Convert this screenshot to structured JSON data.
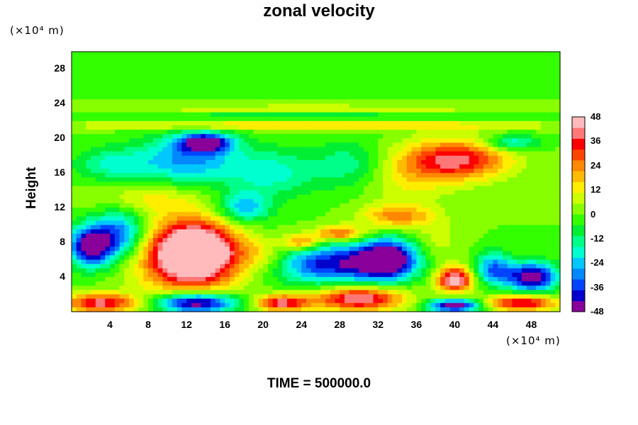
{
  "chart_data": {
    "type": "heatmap",
    "title": "zonal velocity",
    "ylabel": "Height",
    "y_unit": "(×10⁴ m)",
    "x_unit": "(×10⁴ m)",
    "footer": "TIME = 500000.0",
    "xlim": [
      0,
      51
    ],
    "ylim": [
      0,
      30
    ],
    "x_ticks": [
      4,
      8,
      12,
      16,
      20,
      24,
      28,
      32,
      36,
      40,
      44,
      48
    ],
    "y_ticks": [
      4,
      8,
      12,
      16,
      20,
      24,
      28
    ],
    "colorbar": {
      "min": -48,
      "max": 48,
      "step": 6,
      "ticks": [
        48,
        36,
        24,
        12,
        0,
        -12,
        -24,
        -36,
        -48
      ],
      "colors": [
        "#880099",
        "#0000cc",
        "#0044ff",
        "#0088ff",
        "#00c8ff",
        "#00ffd0",
        "#00ff88",
        "#00ee33",
        "#33ff00",
        "#88ff00",
        "#ccff00",
        "#ffee00",
        "#ffbb00",
        "#ff8800",
        "#ff4400",
        "#ff0000",
        "#ff7777",
        "#ffbbbb"
      ]
    },
    "background_value": 0,
    "features": [
      {
        "x": 28,
        "y": 29,
        "rx": 28,
        "ry": 2,
        "v": -2
      },
      {
        "x": 25,
        "y": 21.5,
        "rx": 26,
        "ry": 0.6,
        "v": 18
      },
      {
        "x": 25,
        "y": 22.6,
        "rx": 26,
        "ry": 0.5,
        "v": -8
      },
      {
        "x": 25,
        "y": 23.4,
        "rx": 26,
        "ry": 0.5,
        "v": 10
      },
      {
        "x": 14,
        "y": 19.5,
        "rx": 3,
        "ry": 1.2,
        "v": -46
      },
      {
        "x": 12,
        "y": 17.5,
        "rx": 6,
        "ry": 3,
        "v": -28
      },
      {
        "x": 4,
        "y": 17,
        "rx": 4,
        "ry": 2,
        "v": -16
      },
      {
        "x": 21,
        "y": 16,
        "rx": 5,
        "ry": 3,
        "v": -18
      },
      {
        "x": 29,
        "y": 17,
        "rx": 4,
        "ry": 3,
        "v": -14
      },
      {
        "x": 18,
        "y": 12,
        "rx": 3,
        "ry": 2,
        "v": -26
      },
      {
        "x": 40,
        "y": 17.5,
        "rx": 6,
        "ry": 2.5,
        "v": 40
      },
      {
        "x": 46,
        "y": 19.5,
        "rx": 3,
        "ry": 1,
        "v": -22
      },
      {
        "x": 35,
        "y": 15,
        "rx": 5,
        "ry": 3,
        "v": 10
      },
      {
        "x": 8,
        "y": 13,
        "rx": 6,
        "ry": 2,
        "v": 12
      },
      {
        "x": 34,
        "y": 11,
        "rx": 4,
        "ry": 1.5,
        "v": 24
      },
      {
        "x": 28,
        "y": 9,
        "rx": 3,
        "ry": 1,
        "v": 30
      },
      {
        "x": 24,
        "y": 8,
        "rx": 2,
        "ry": 1,
        "v": 28
      },
      {
        "x": 2,
        "y": 7.5,
        "rx": 2.5,
        "ry": 2.5,
        "v": -50
      },
      {
        "x": 5,
        "y": 9,
        "rx": 3,
        "ry": 3,
        "v": -32
      },
      {
        "x": 13,
        "y": 7,
        "rx": 4.5,
        "ry": 3.5,
        "v": 50
      },
      {
        "x": 12,
        "y": 6,
        "rx": 6,
        "ry": 5,
        "v": 30
      },
      {
        "x": 27,
        "y": 5.5,
        "rx": 6,
        "ry": 2.5,
        "v": -40
      },
      {
        "x": 33,
        "y": 6,
        "rx": 3.5,
        "ry": 2.5,
        "v": -55
      },
      {
        "x": 40,
        "y": 3.7,
        "rx": 2,
        "ry": 1.5,
        "v": 50
      },
      {
        "x": 48,
        "y": 4,
        "rx": 3,
        "ry": 1.8,
        "v": -50
      },
      {
        "x": 44,
        "y": 5,
        "rx": 2,
        "ry": 2,
        "v": -30
      },
      {
        "x": 13,
        "y": 1,
        "rx": 4.5,
        "ry": 1.3,
        "v": -55
      },
      {
        "x": 3,
        "y": 1,
        "rx": 4,
        "ry": 1.2,
        "v": 40
      },
      {
        "x": 22,
        "y": 1,
        "rx": 3,
        "ry": 1,
        "v": 40
      },
      {
        "x": 30,
        "y": 1.5,
        "rx": 5,
        "ry": 1.5,
        "v": 45
      },
      {
        "x": 40,
        "y": 0.7,
        "rx": 3,
        "ry": 0.8,
        "v": -50
      },
      {
        "x": 47,
        "y": 1,
        "rx": 4,
        "ry": 1,
        "v": 40
      },
      {
        "x": 20,
        "y": 6.5,
        "rx": 3,
        "ry": 2,
        "v": 12
      },
      {
        "x": 38,
        "y": 8,
        "rx": 3,
        "ry": 3,
        "v": 8
      }
    ]
  }
}
